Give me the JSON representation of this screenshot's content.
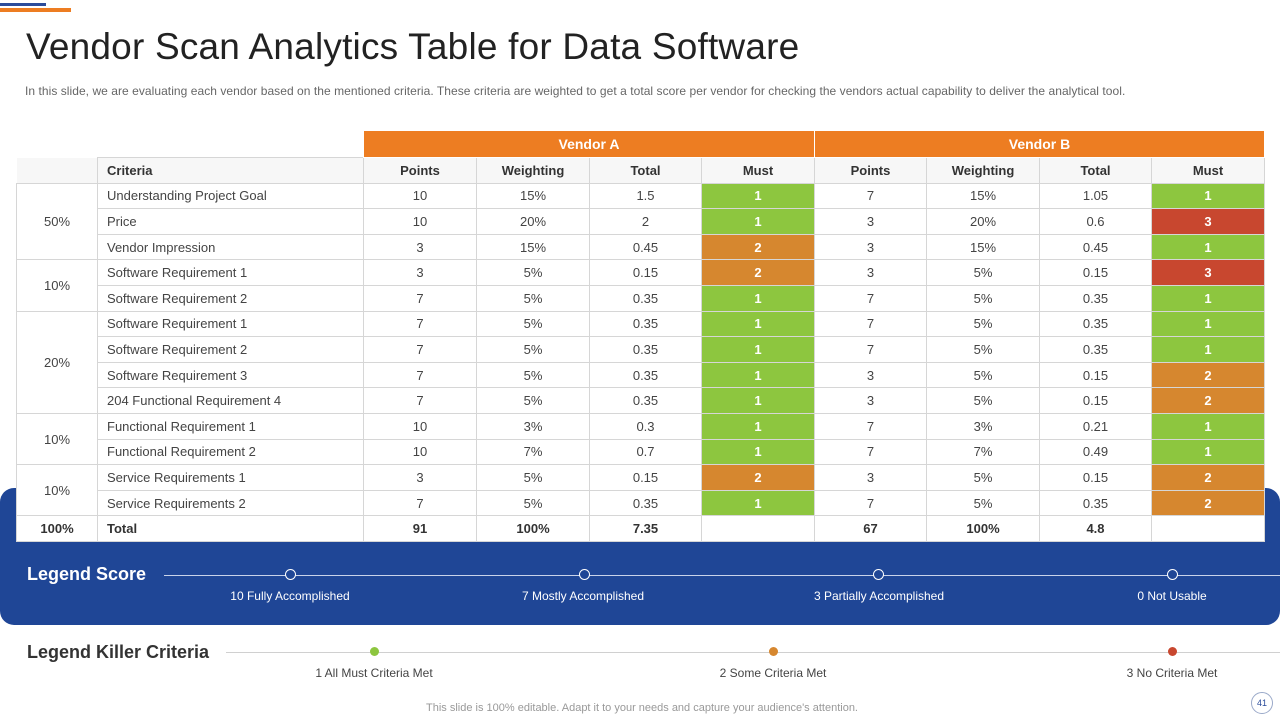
{
  "slide": {
    "title": "Vendor Scan Analytics Table for Data Software",
    "subtitle": "In this slide, we are evaluating  each vendor  based on the mentioned criteria. These  criteria are weighted  to get a total score  per vendor  for checking the vendors  actual capability to deliver  the analytical tool.",
    "footer": "This slide is 100% editable. Adapt it to your needs and capture your audience's attention.",
    "page_number": "41"
  },
  "table": {
    "vendor_a": "Vendor A",
    "vendor_b": "Vendor B",
    "headers": {
      "criteria": "Criteria",
      "points": "Points",
      "weighting": "Weighting",
      "total": "Total",
      "must": "Must"
    },
    "groups": [
      "50%",
      "10%",
      "20%",
      "10%",
      "10%"
    ],
    "rows": [
      {
        "criteria": "Understanding  Project Goal",
        "a_points": "10",
        "a_weight": "15%",
        "a_total": "1.5",
        "a_must": "1",
        "b_points": "7",
        "b_weight": "15%",
        "b_total": "1.05",
        "b_must": "1"
      },
      {
        "criteria": "Price",
        "a_points": "10",
        "a_weight": "20%",
        "a_total": "2",
        "a_must": "1",
        "b_points": "3",
        "b_weight": "20%",
        "b_total": "0.6",
        "b_must": "3"
      },
      {
        "criteria": "Vendor Impression",
        "a_points": "3",
        "a_weight": "15%",
        "a_total": "0.45",
        "a_must": "2",
        "b_points": "3",
        "b_weight": "15%",
        "b_total": "0.45",
        "b_must": "1"
      },
      {
        "criteria": "Software Requirement  1",
        "a_points": "3",
        "a_weight": "5%",
        "a_total": "0.15",
        "a_must": "2",
        "b_points": "3",
        "b_weight": "5%",
        "b_total": "0.15",
        "b_must": "3"
      },
      {
        "criteria": "Software Requirement  2",
        "a_points": "7",
        "a_weight": "5%",
        "a_total": "0.35",
        "a_must": "1",
        "b_points": "7",
        "b_weight": "5%",
        "b_total": "0.35",
        "b_must": "1"
      },
      {
        "criteria": "Software Requirement  1",
        "a_points": "7",
        "a_weight": "5%",
        "a_total": "0.35",
        "a_must": "1",
        "b_points": "7",
        "b_weight": "5%",
        "b_total": "0.35",
        "b_must": "1"
      },
      {
        "criteria": "Software Requirement  2",
        "a_points": "7",
        "a_weight": "5%",
        "a_total": "0.35",
        "a_must": "1",
        "b_points": "7",
        "b_weight": "5%",
        "b_total": "0.35",
        "b_must": "1"
      },
      {
        "criteria": "Software Requirement  3",
        "a_points": "7",
        "a_weight": "5%",
        "a_total": "0.35",
        "a_must": "1",
        "b_points": "3",
        "b_weight": "5%",
        "b_total": "0.15",
        "b_must": "2"
      },
      {
        "criteria": "204 Functional Requirement  4",
        "a_points": "7",
        "a_weight": "5%",
        "a_total": "0.35",
        "a_must": "1",
        "b_points": "3",
        "b_weight": "5%",
        "b_total": "0.15",
        "b_must": "2"
      },
      {
        "criteria": "Functional Requirement  1",
        "a_points": "10",
        "a_weight": "3%",
        "a_total": "0.3",
        "a_must": "1",
        "b_points": "7",
        "b_weight": "3%",
        "b_total": "0.21",
        "b_must": "1"
      },
      {
        "criteria": "Functional Requirement  2",
        "a_points": "10",
        "a_weight": "7%",
        "a_total": "0.7",
        "a_must": "1",
        "b_points": "7",
        "b_weight": "7%",
        "b_total": "0.49",
        "b_must": "1"
      },
      {
        "criteria": "Service Requirements  1",
        "a_points": "3",
        "a_weight": "5%",
        "a_total": "0.15",
        "a_must": "2",
        "b_points": "3",
        "b_weight": "5%",
        "b_total": "0.15",
        "b_must": "2"
      },
      {
        "criteria": "Service Requirements  2",
        "a_points": "7",
        "a_weight": "5%",
        "a_total": "0.35",
        "a_must": "1",
        "b_points": "7",
        "b_weight": "5%",
        "b_total": "0.35",
        "b_must": "2"
      }
    ],
    "total_row": {
      "group": "100%",
      "label": "Total",
      "a_points": "91",
      "a_weight": "100%",
      "a_total": "7.35",
      "b_points": "67",
      "b_weight": "100%",
      "b_total": "4.8"
    }
  },
  "legend_score": {
    "title": "Legend Score",
    "items": [
      "10 Fully Accomplished",
      "7 Mostly Accomplished",
      "3 Partially Accomplished",
      "0 Not Usable"
    ]
  },
  "legend_killer": {
    "title": "Legend Killer Criteria",
    "items": [
      "1 All Must Criteria Met",
      "2 Some Criteria Met",
      "3 No Criteria Met"
    ]
  },
  "colors": {
    "orange_header": "#ed7d22",
    "blue_band": "#1f4696",
    "must_1_green": "#8dc63f",
    "must_2_orange": "#d6872f",
    "must_3_red": "#c8472f"
  }
}
